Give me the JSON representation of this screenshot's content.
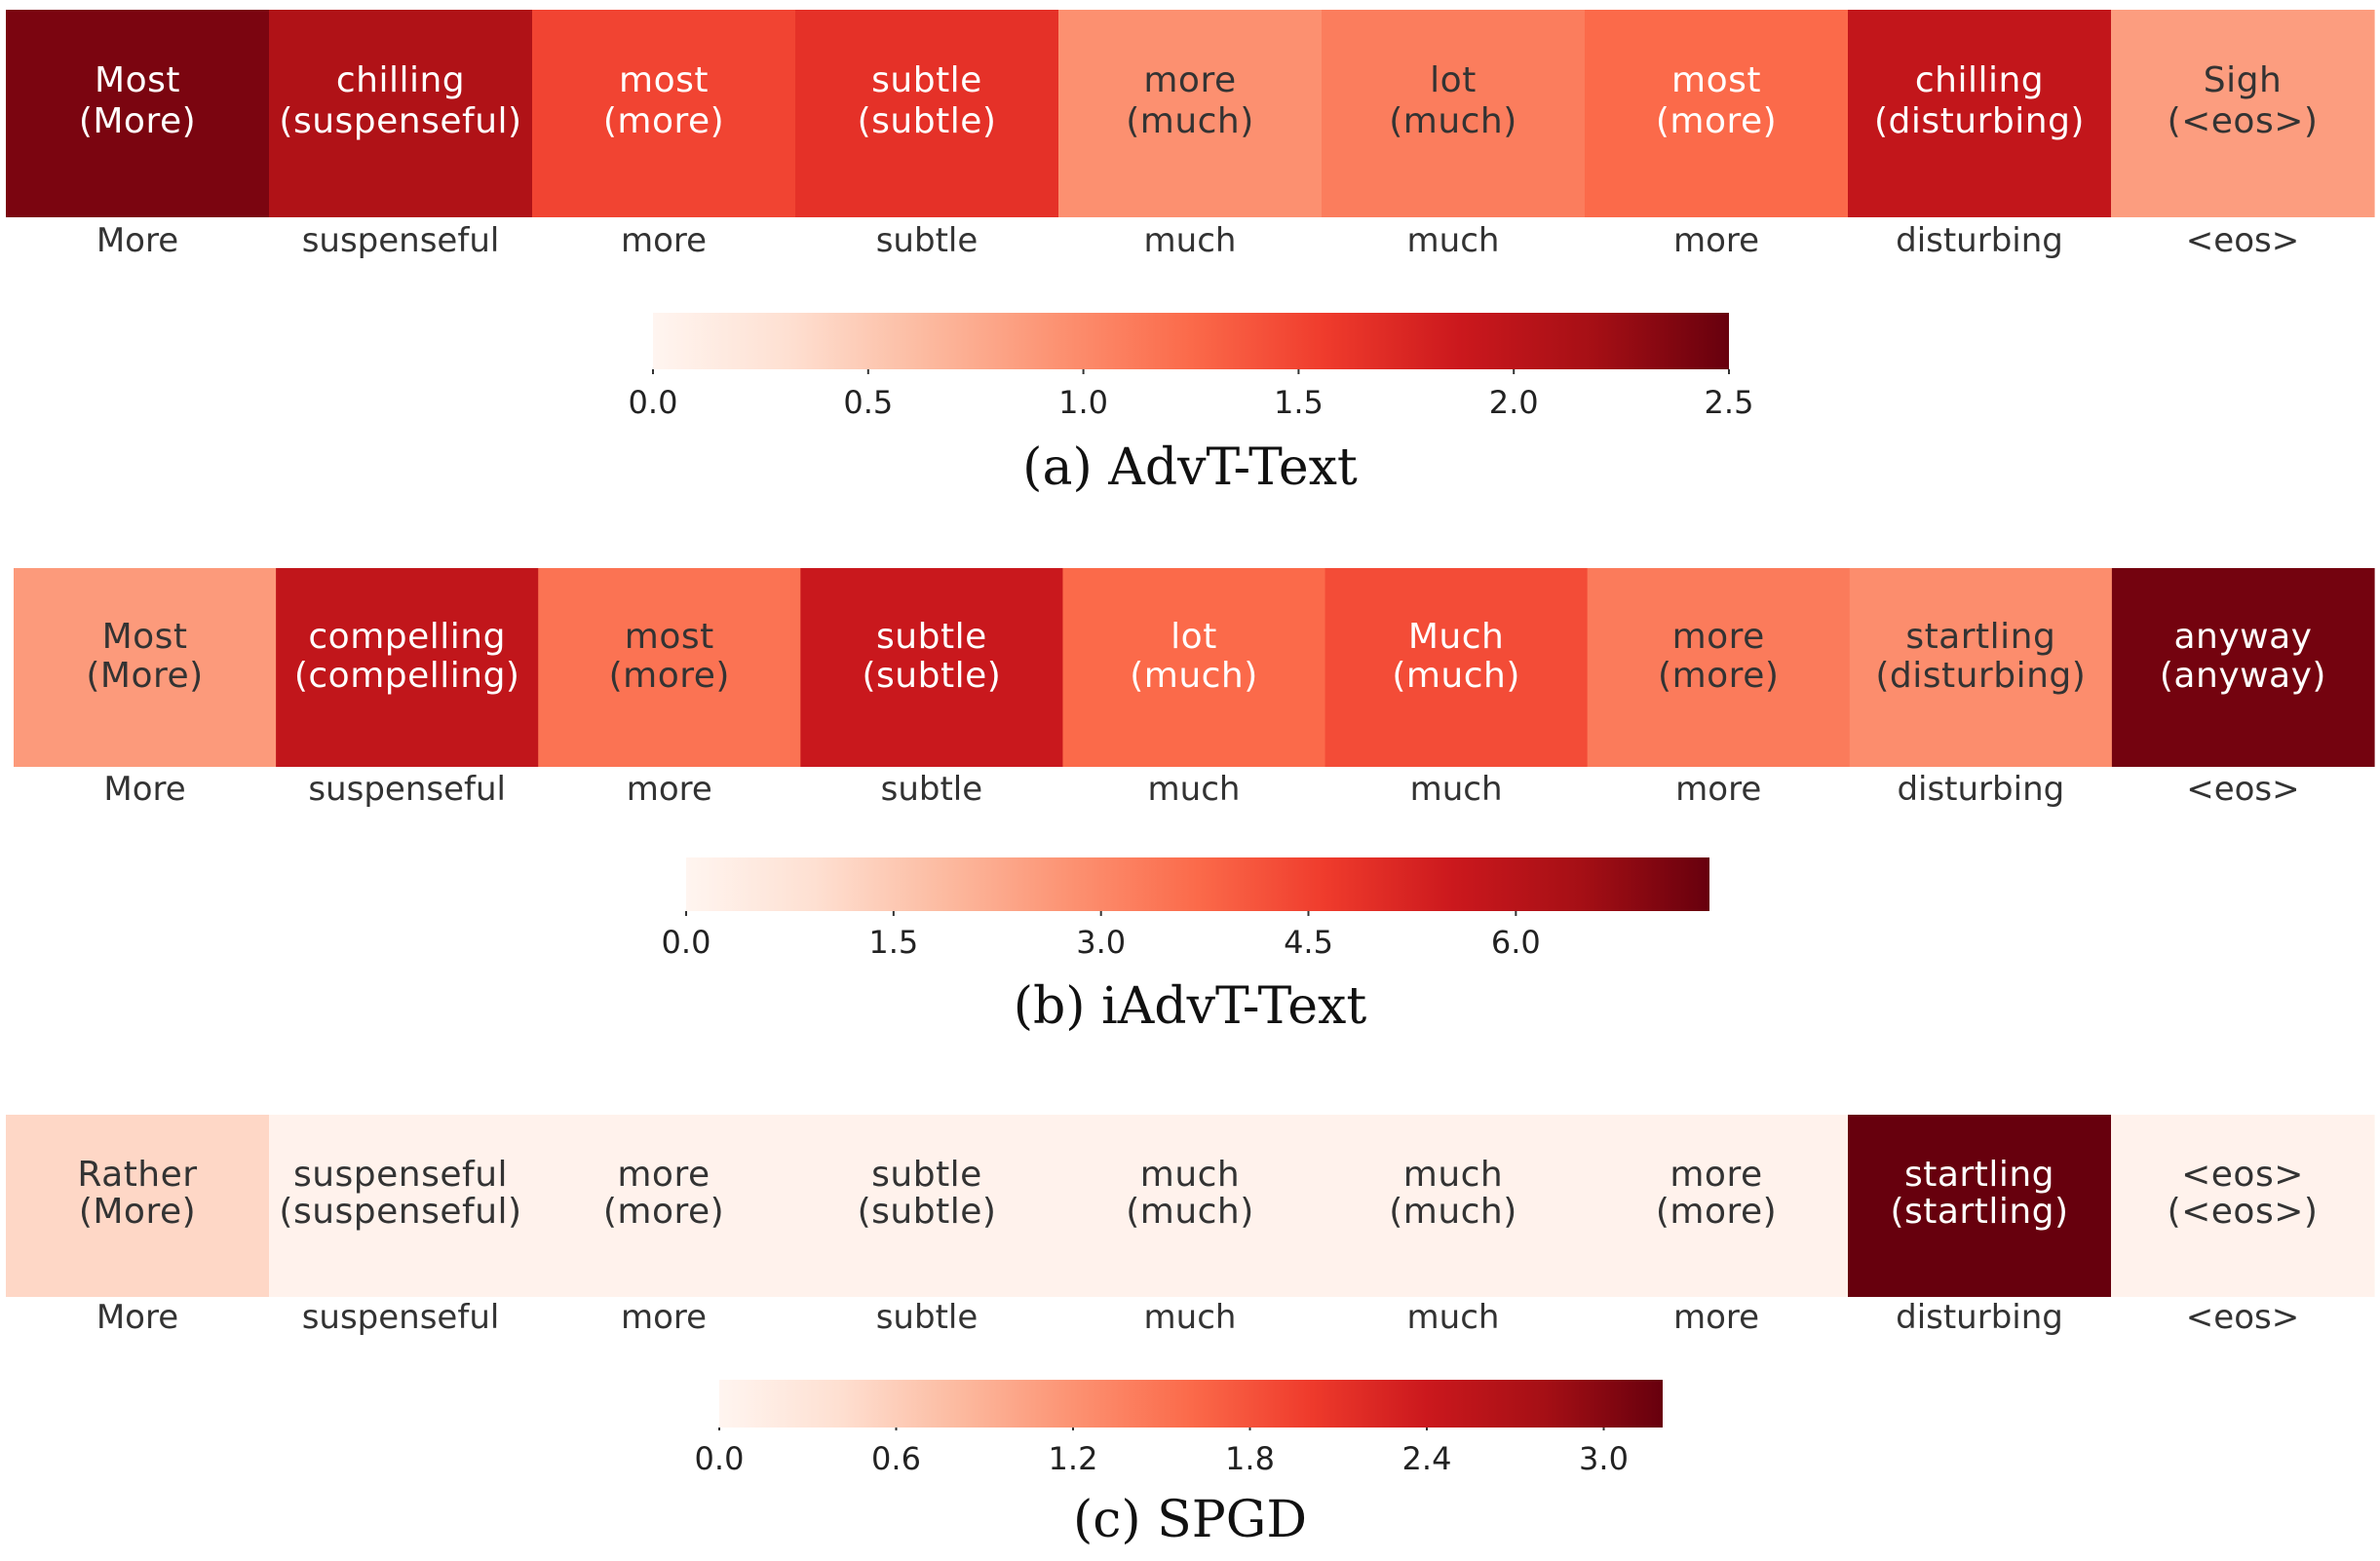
{
  "chart_data": [
    {
      "type": "heatmap",
      "caption": "(a) AdvT-Text",
      "cells": [
        {
          "word": "Most",
          "orig": "(More)",
          "value": 2.4
        },
        {
          "word": "chilling",
          "orig": "(suspenseful)",
          "value": 2.1
        },
        {
          "word": "most",
          "orig": "(more)",
          "value": 1.5
        },
        {
          "word": "subtle",
          "orig": "(subtle)",
          "value": 1.65
        },
        {
          "word": "more",
          "orig": "(much)",
          "value": 0.95
        },
        {
          "word": "lot",
          "orig": "(much)",
          "value": 1.1
        },
        {
          "word": "most",
          "orig": "(more)",
          "value": 1.25
        },
        {
          "word": "chilling",
          "orig": "(disturbing)",
          "value": 1.95
        },
        {
          "word": "Sigh",
          "orig": "(<eos>)",
          "value": 0.85
        }
      ],
      "x_labels": [
        "More",
        "suspenseful",
        "more",
        "subtle",
        "much",
        "much",
        "more",
        "disturbing",
        "<eos>"
      ],
      "colorbar": {
        "min": 0.0,
        "max": 2.5,
        "ticks": [
          "0.0",
          "0.5",
          "1.0",
          "1.5",
          "2.0",
          "2.5"
        ]
      }
    },
    {
      "type": "heatmap",
      "caption": "(b) iAdvT-Text",
      "cells": [
        {
          "word": "Most",
          "orig": "(More)",
          "value": 2.6
        },
        {
          "word": "compelling",
          "orig": "(compelling)",
          "value": 5.8
        },
        {
          "word": "most",
          "orig": "(more)",
          "value": 3.5
        },
        {
          "word": "subtle",
          "orig": "(subtle)",
          "value": 5.6
        },
        {
          "word": "lot",
          "orig": "(much)",
          "value": 3.7
        },
        {
          "word": "Much",
          "orig": "(much)",
          "value": 4.3
        },
        {
          "word": "more",
          "orig": "(more)",
          "value": 3.3
        },
        {
          "word": "startling",
          "orig": "(disturbing)",
          "value": 2.9
        },
        {
          "word": "anyway",
          "orig": "(anyway)",
          "value": 7.2
        }
      ],
      "x_labels": [
        "More",
        "suspenseful",
        "more",
        "subtle",
        "much",
        "much",
        "more",
        "disturbing",
        "<eos>"
      ],
      "colorbar": {
        "min": 0.0,
        "max": 7.4,
        "ticks": [
          "0.0",
          "1.5",
          "3.0",
          "4.5",
          "6.0"
        ]
      }
    },
    {
      "type": "heatmap",
      "caption": "(c) SPGD",
      "cells": [
        {
          "word": "Rather",
          "orig": "(More)",
          "value": 0.5
        },
        {
          "word": "suspenseful",
          "orig": "(suspenseful)",
          "value": 0.06
        },
        {
          "word": "more",
          "orig": "(more)",
          "value": 0.06
        },
        {
          "word": "subtle",
          "orig": "(subtle)",
          "value": 0.06
        },
        {
          "word": "much",
          "orig": "(much)",
          "value": 0.06
        },
        {
          "word": "much",
          "orig": "(much)",
          "value": 0.06
        },
        {
          "word": "more",
          "orig": "(more)",
          "value": 0.06
        },
        {
          "word": "startling",
          "orig": "(startling)",
          "value": 3.2
        },
        {
          "word": "<eos>",
          "orig": "(<eos>)",
          "value": 0.06
        }
      ],
      "x_labels": [
        "More",
        "suspenseful",
        "more",
        "subtle",
        "much",
        "much",
        "more",
        "disturbing",
        "<eos>"
      ],
      "colorbar": {
        "min": 0.0,
        "max": 3.2,
        "ticks": [
          "0.0",
          "0.6",
          "1.2",
          "1.8",
          "2.4",
          "3.0"
        ]
      }
    }
  ]
}
